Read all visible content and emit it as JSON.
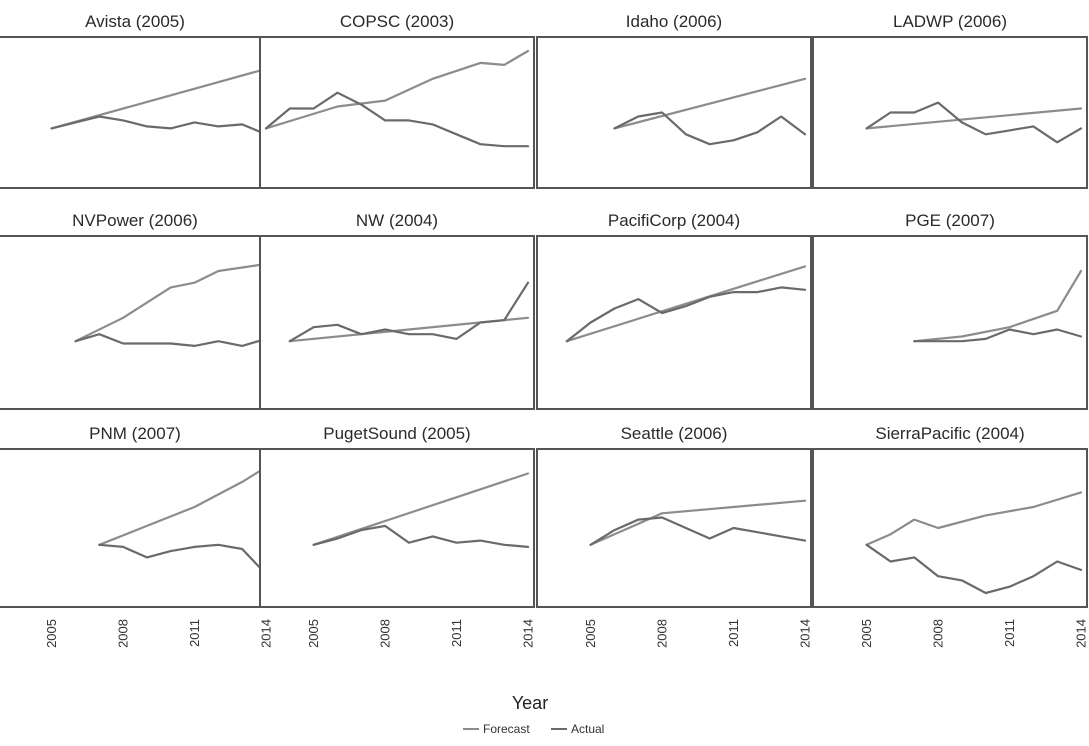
{
  "chart_data": {
    "type": "line",
    "xlabel": "Year",
    "x_ticks": [
      2005,
      2008,
      2011,
      2014
    ],
    "xlim": [
      2003,
      2014
    ],
    "colors": {
      "forecast": "#8c8c8c",
      "actual": "#6a6a6a"
    },
    "legend": {
      "position": "bottom-center",
      "entries": [
        {
          "key": "forecast",
          "label": "Forecast"
        },
        {
          "key": "actual",
          "label": "Actual"
        }
      ]
    },
    "grid": false,
    "facets": [
      {
        "title": "Avista (2005)",
        "forecast": {
          "x": [
            2005,
            2014
          ],
          "y": [
            0,
            30
          ]
        },
        "actual": {
          "x": [
            2005,
            2006,
            2007,
            2008,
            2009,
            2010,
            2011,
            2012,
            2013,
            2014
          ],
          "y": [
            0,
            3,
            6,
            4,
            1,
            0,
            3,
            1,
            2,
            -3
          ]
        }
      },
      {
        "title": "COPSC (2003)",
        "forecast": {
          "x": [
            2003,
            2006,
            2008,
            2010,
            2012,
            2013,
            2014
          ],
          "y": [
            0,
            11,
            14,
            25,
            33,
            32,
            39
          ]
        },
        "actual": {
          "x": [
            2003,
            2004,
            2005,
            2006,
            2007,
            2008,
            2009,
            2010,
            2011,
            2012,
            2013,
            2014
          ],
          "y": [
            0,
            10,
            10,
            18,
            12,
            4,
            4,
            2,
            -3,
            -8,
            -9,
            -9
          ]
        }
      },
      {
        "title": "Idaho (2006)",
        "forecast": {
          "x": [
            2006,
            2014
          ],
          "y": [
            0,
            25
          ]
        },
        "actual": {
          "x": [
            2006,
            2007,
            2008,
            2009,
            2010,
            2011,
            2012,
            2013,
            2014
          ],
          "y": [
            0,
            6,
            8,
            -3,
            -8,
            -6,
            -2,
            6,
            -3
          ]
        }
      },
      {
        "title": "LADWP (2006)",
        "forecast": {
          "x": [
            2005,
            2014
          ],
          "y": [
            0,
            10
          ]
        },
        "actual": {
          "x": [
            2005,
            2006,
            2007,
            2008,
            2009,
            2010,
            2011,
            2012,
            2013,
            2014
          ],
          "y": [
            0,
            8,
            8,
            13,
            3,
            -3,
            -1,
            1,
            -7,
            0
          ]
        }
      },
      {
        "title": "NVPower (2006)",
        "forecast": {
          "x": [
            2006,
            2008,
            2010,
            2011,
            2012,
            2014
          ],
          "y": [
            0,
            10,
            23,
            25,
            30,
            33
          ]
        },
        "actual": {
          "x": [
            2006,
            2007,
            2008,
            2009,
            2010,
            2011,
            2012,
            2013,
            2014
          ],
          "y": [
            0,
            3,
            -1,
            -1,
            -1,
            -2,
            0,
            -2,
            1
          ]
        }
      },
      {
        "title": "NW (2004)",
        "forecast": {
          "x": [
            2004,
            2014
          ],
          "y": [
            0,
            10
          ]
        },
        "actual": {
          "x": [
            2004,
            2005,
            2006,
            2007,
            2008,
            2009,
            2010,
            2011,
            2012,
            2013,
            2014
          ],
          "y": [
            0,
            6,
            7,
            3,
            5,
            3,
            3,
            1,
            8,
            9,
            25
          ]
        }
      },
      {
        "title": "PacifiCorp (2004)",
        "forecast": {
          "x": [
            2004,
            2014
          ],
          "y": [
            0,
            32
          ]
        },
        "actual": {
          "x": [
            2004,
            2005,
            2006,
            2007,
            2008,
            2009,
            2010,
            2011,
            2012,
            2013,
            2014
          ],
          "y": [
            0,
            8,
            14,
            18,
            12,
            15,
            19,
            21,
            21,
            23,
            22
          ]
        }
      },
      {
        "title": "PGE (2007)",
        "forecast": {
          "x": [
            2007,
            2009,
            2011,
            2013,
            2014
          ],
          "y": [
            0,
            2,
            6,
            13,
            30
          ]
        },
        "actual": {
          "x": [
            2007,
            2008,
            2009,
            2010,
            2011,
            2012,
            2013,
            2014
          ],
          "y": [
            0,
            0,
            0,
            1,
            5,
            3,
            5,
            2
          ]
        }
      },
      {
        "title": "PNM (2007)",
        "forecast": {
          "x": [
            2007,
            2009,
            2011,
            2013,
            2014
          ],
          "y": [
            0,
            9,
            18,
            30,
            37
          ]
        },
        "actual": {
          "x": [
            2007,
            2008,
            2009,
            2010,
            2011,
            2012,
            2013,
            2014
          ],
          "y": [
            0,
            -1,
            -6,
            -3,
            -1,
            0,
            -2,
            -14
          ]
        }
      },
      {
        "title": "PugetSound (2005)",
        "forecast": {
          "x": [
            2005,
            2014
          ],
          "y": [
            0,
            34
          ]
        },
        "actual": {
          "x": [
            2005,
            2006,
            2007,
            2008,
            2009,
            2010,
            2011,
            2012,
            2013,
            2014
          ],
          "y": [
            0,
            3,
            7,
            9,
            1,
            4,
            1,
            2,
            0,
            -1
          ]
        }
      },
      {
        "title": "Seattle (2006)",
        "forecast": {
          "x": [
            2005,
            2008,
            2014
          ],
          "y": [
            0,
            15,
            21
          ]
        },
        "actual": {
          "x": [
            2005,
            2006,
            2007,
            2008,
            2009,
            2010,
            2011,
            2012,
            2013,
            2014
          ],
          "y": [
            0,
            7,
            12,
            13,
            8,
            3,
            8,
            6,
            4,
            2
          ]
        }
      },
      {
        "title": "SierraPacific (2004)",
        "forecast": {
          "x": [
            2005,
            2006,
            2007,
            2008,
            2010,
            2012,
            2014
          ],
          "y": [
            0,
            5,
            12,
            8,
            14,
            18,
            25
          ]
        },
        "actual": {
          "x": [
            2005,
            2006,
            2007,
            2008,
            2009,
            2010,
            2011,
            2012,
            2013,
            2014
          ],
          "y": [
            0,
            -8,
            -6,
            -15,
            -17,
            -23,
            -20,
            -15,
            -8,
            -12
          ]
        }
      }
    ]
  }
}
